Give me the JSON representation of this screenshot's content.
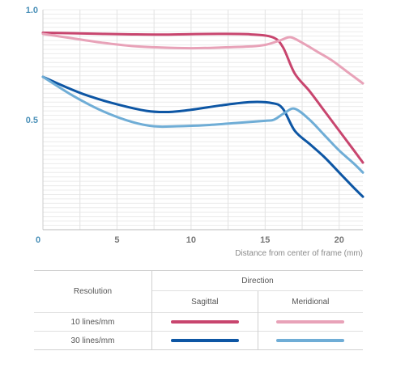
{
  "chart_data": {
    "type": "line",
    "xlabel": "Distance from center of frame (mm)",
    "ylabel": "",
    "xlim": [
      0,
      21.6
    ],
    "ylim": [
      0,
      1.0
    ],
    "x_ticks": [
      0,
      5,
      10,
      15,
      20
    ],
    "y_ticks": [
      0.5,
      1.0
    ],
    "y_tick_labels": [
      "0.5",
      "1.0"
    ],
    "grid": true,
    "series": [
      {
        "name": "10 lines/mm Sagittal",
        "color": "#c8456e",
        "x": [
          0,
          2,
          4,
          6,
          8,
          10,
          12,
          14,
          15.5,
          16.2,
          17,
          18,
          19,
          20,
          21,
          21.6
        ],
        "y": [
          0.895,
          0.893,
          0.89,
          0.888,
          0.887,
          0.889,
          0.89,
          0.888,
          0.875,
          0.83,
          0.71,
          0.63,
          0.54,
          0.45,
          0.36,
          0.305
        ]
      },
      {
        "name": "10 lines/mm Meridional",
        "color": "#e8a2b8",
        "x": [
          0,
          2,
          4,
          6,
          8,
          10,
          12,
          14,
          15,
          16,
          16.7,
          17.5,
          18.5,
          19.5,
          20.5,
          21.6
        ],
        "y": [
          0.89,
          0.87,
          0.85,
          0.835,
          0.828,
          0.825,
          0.828,
          0.833,
          0.84,
          0.86,
          0.875,
          0.85,
          0.81,
          0.77,
          0.72,
          0.665
        ]
      },
      {
        "name": "30 lines/mm Sagittal",
        "color": "#0d56a4",
        "x": [
          0,
          1.5,
          3,
          5,
          7,
          8.5,
          10,
          12,
          14,
          15.5,
          16.2,
          17,
          18,
          19,
          20,
          21,
          21.6
        ],
        "y": [
          0.695,
          0.65,
          0.61,
          0.57,
          0.54,
          0.535,
          0.545,
          0.565,
          0.58,
          0.575,
          0.55,
          0.45,
          0.39,
          0.33,
          0.26,
          0.19,
          0.15
        ]
      },
      {
        "name": "30 lines/mm Meridional",
        "color": "#6fadd6",
        "x": [
          0,
          2,
          4,
          6,
          7.5,
          9,
          11,
          13,
          15,
          15.6,
          16.3,
          17,
          18,
          19,
          20,
          21,
          21.6
        ],
        "y": [
          0.695,
          0.61,
          0.54,
          0.49,
          0.47,
          0.47,
          0.475,
          0.485,
          0.495,
          0.5,
          0.53,
          0.55,
          0.5,
          0.43,
          0.36,
          0.3,
          0.26
        ]
      }
    ]
  },
  "legend": {
    "resolution_label": "Resolution",
    "direction_label": "Direction",
    "sagittal_label": "Sagittal",
    "meridional_label": "Meridional",
    "rows": [
      {
        "label": "10 lines/mm",
        "sagittal_color": "#c8456e",
        "meridional_color": "#e8a2b8"
      },
      {
        "label": "30 lines/mm",
        "sagittal_color": "#0d56a4",
        "meridional_color": "#6fadd6"
      }
    ]
  }
}
